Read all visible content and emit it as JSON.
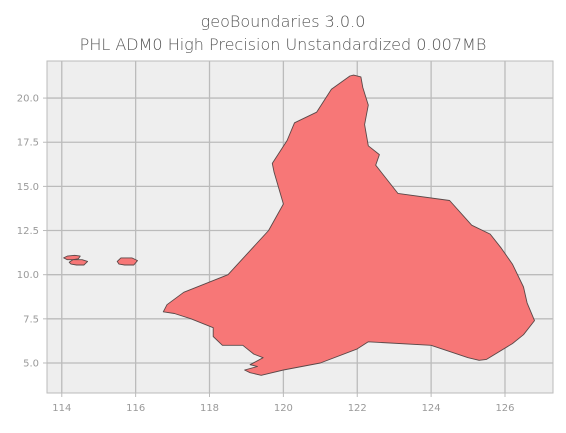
{
  "chart_data": {
    "type": "map",
    "title": "geoBoundaries 3.0.0",
    "subtitle": "PHL ADM0 High Precision Unstandardized 0.007MB",
    "xlim": [
      113.6,
      127.3
    ],
    "ylim": [
      3.3,
      22.1
    ],
    "xticks": [
      114,
      116,
      118,
      120,
      122,
      124,
      126
    ],
    "yticks": [
      5.0,
      7.5,
      10.0,
      12.5,
      15.0,
      17.5,
      20.0
    ],
    "grid": true,
    "fill_color": "#f77777",
    "edge_color": "#5a4848",
    "background_color": "#eeeeee",
    "grid_color": "#bbbbbb",
    "islands": [
      {
        "name": "main",
        "coords": [
          [
            121.9,
            21.3
          ],
          [
            121.8,
            21.25
          ],
          [
            121.3,
            20.5
          ],
          [
            120.9,
            19.2
          ],
          [
            120.3,
            18.6
          ],
          [
            120.1,
            17.6
          ],
          [
            119.7,
            16.3
          ],
          [
            119.75,
            15.8
          ],
          [
            120.0,
            14.0
          ],
          [
            119.6,
            12.5
          ],
          [
            118.5,
            10.0
          ],
          [
            117.3,
            9.0
          ],
          [
            116.85,
            8.3
          ],
          [
            116.75,
            7.9
          ],
          [
            117.05,
            7.8
          ],
          [
            117.5,
            7.5
          ],
          [
            118.1,
            7.0
          ],
          [
            118.1,
            6.5
          ],
          [
            118.35,
            6.0
          ],
          [
            118.9,
            6.0
          ],
          [
            119.2,
            5.5
          ],
          [
            119.45,
            5.3
          ],
          [
            119.1,
            4.9
          ],
          [
            119.3,
            4.8
          ],
          [
            118.95,
            4.6
          ],
          [
            119.1,
            4.45
          ],
          [
            119.4,
            4.3
          ],
          [
            120.0,
            4.6
          ],
          [
            121.0,
            5.0
          ],
          [
            122.0,
            5.8
          ],
          [
            122.3,
            6.2
          ],
          [
            124.0,
            6.0
          ],
          [
            125.0,
            5.3
          ],
          [
            125.3,
            5.15
          ],
          [
            125.5,
            5.2
          ],
          [
            126.2,
            6.1
          ],
          [
            126.5,
            6.6
          ],
          [
            126.8,
            7.4
          ],
          [
            126.6,
            8.4
          ],
          [
            126.5,
            9.3
          ],
          [
            126.2,
            10.6
          ],
          [
            125.9,
            11.5
          ],
          [
            125.6,
            12.3
          ],
          [
            125.1,
            12.8
          ],
          [
            124.5,
            14.2
          ],
          [
            123.1,
            14.6
          ],
          [
            122.5,
            16.2
          ],
          [
            122.6,
            16.8
          ],
          [
            122.3,
            17.3
          ],
          [
            122.2,
            18.5
          ],
          [
            122.3,
            19.6
          ],
          [
            122.15,
            20.6
          ],
          [
            122.1,
            21.2
          ]
        ]
      },
      {
        "name": "islet-a",
        "coords": [
          [
            114.05,
            10.95
          ],
          [
            114.15,
            11.05
          ],
          [
            114.35,
            11.1
          ],
          [
            114.5,
            11.05
          ],
          [
            114.45,
            10.9
          ],
          [
            114.3,
            10.85
          ],
          [
            114.15,
            10.85
          ]
        ]
      },
      {
        "name": "islet-b",
        "coords": [
          [
            114.2,
            10.7
          ],
          [
            114.3,
            10.85
          ],
          [
            114.55,
            10.85
          ],
          [
            114.7,
            10.75
          ],
          [
            114.6,
            10.55
          ],
          [
            114.4,
            10.55
          ],
          [
            114.25,
            10.6
          ]
        ]
      },
      {
        "name": "islet-c",
        "coords": [
          [
            115.5,
            10.75
          ],
          [
            115.6,
            10.95
          ],
          [
            115.9,
            10.95
          ],
          [
            116.05,
            10.8
          ],
          [
            115.95,
            10.55
          ],
          [
            115.7,
            10.55
          ],
          [
            115.55,
            10.6
          ]
        ]
      }
    ]
  }
}
